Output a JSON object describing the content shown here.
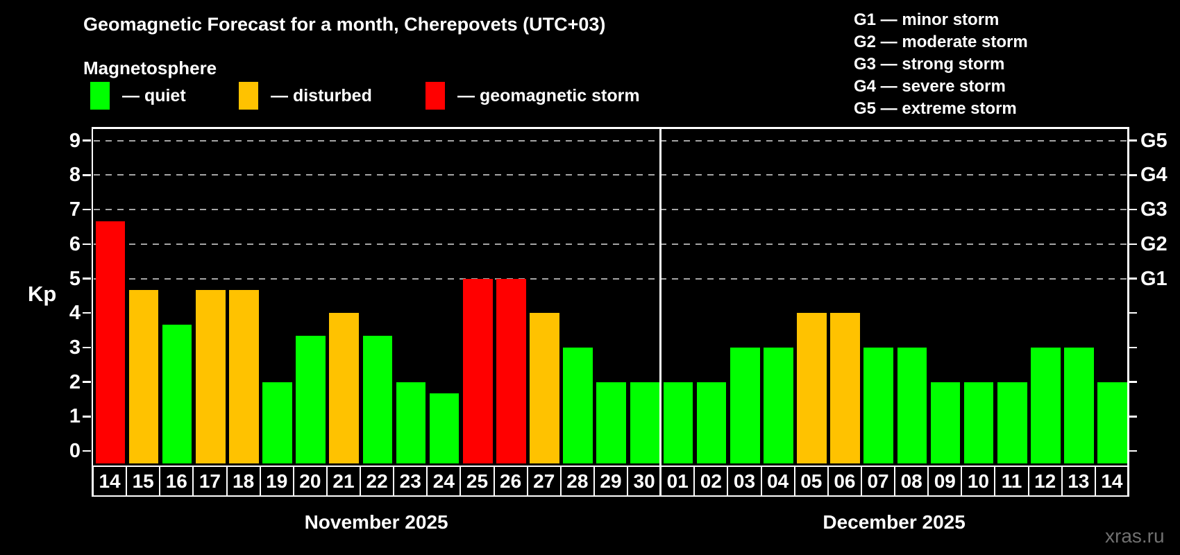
{
  "colors": {
    "quiet": "#00ff00",
    "disturbed": "#ffc200",
    "storm": "#ff0000",
    "grid": "#a6a6a6",
    "axis": "#ffffff",
    "watermark": "#707070"
  },
  "header": {
    "title": "Geomagnetic Forecast for a month, Cherepovets (UTC+03)",
    "subtitle": "Magnetosphere"
  },
  "legend": {
    "items": [
      {
        "key": "quiet",
        "label": "— quiet"
      },
      {
        "key": "disturbed",
        "label": "— disturbed"
      },
      {
        "key": "storm",
        "label": "— geomagnetic storm"
      }
    ]
  },
  "g_legend": {
    "lines": [
      "G1 — minor storm",
      "G2 — moderate storm",
      "G3 — strong storm",
      "G4 — severe storm",
      "G5 — extreme storm"
    ]
  },
  "watermark": "xras.ru",
  "chart_data": {
    "type": "bar",
    "title": "Geomagnetic Forecast for a month, Cherepovets (UTC+03)",
    "subtitle": "Magnetosphere",
    "ylabel": "Kp",
    "xlabel": "",
    "ylim": [
      0,
      9.4
    ],
    "yticks": [
      0,
      1,
      2,
      3,
      4,
      5,
      6,
      7,
      8,
      9
    ],
    "grid_levels": [
      5,
      6,
      7,
      8,
      9
    ],
    "grid": "dashed horizontal at storm levels only",
    "legend_position": "top-left",
    "right_axis": [
      {
        "kp": 5,
        "label": "G1"
      },
      {
        "kp": 6,
        "label": "G2"
      },
      {
        "kp": 7,
        "label": "G3"
      },
      {
        "kp": 8,
        "label": "G4"
      },
      {
        "kp": 9,
        "label": "G5"
      }
    ],
    "months": [
      {
        "label": "November 2025",
        "start_index": 0,
        "count": 17
      },
      {
        "label": "December 2025",
        "start_index": 17,
        "count": 14
      }
    ],
    "bars": [
      {
        "date": "14",
        "kp": 6.67,
        "status": "storm"
      },
      {
        "date": "15",
        "kp": 4.67,
        "status": "disturbed"
      },
      {
        "date": "16",
        "kp": 3.67,
        "status": "quiet"
      },
      {
        "date": "17",
        "kp": 4.67,
        "status": "disturbed"
      },
      {
        "date": "18",
        "kp": 4.67,
        "status": "disturbed"
      },
      {
        "date": "19",
        "kp": 2,
        "status": "quiet"
      },
      {
        "date": "20",
        "kp": 3.33,
        "status": "quiet"
      },
      {
        "date": "21",
        "kp": 4,
        "status": "disturbed"
      },
      {
        "date": "22",
        "kp": 3.33,
        "status": "quiet"
      },
      {
        "date": "23",
        "kp": 2,
        "status": "quiet"
      },
      {
        "date": "24",
        "kp": 1.67,
        "status": "quiet"
      },
      {
        "date": "25",
        "kp": 5,
        "status": "storm"
      },
      {
        "date": "26",
        "kp": 5,
        "status": "storm"
      },
      {
        "date": "27",
        "kp": 4,
        "status": "disturbed"
      },
      {
        "date": "28",
        "kp": 3,
        "status": "quiet"
      },
      {
        "date": "29",
        "kp": 2,
        "status": "quiet"
      },
      {
        "date": "30",
        "kp": 2,
        "status": "quiet"
      },
      {
        "date": "01",
        "kp": 2,
        "status": "quiet"
      },
      {
        "date": "02",
        "kp": 2,
        "status": "quiet"
      },
      {
        "date": "03",
        "kp": 3,
        "status": "quiet"
      },
      {
        "date": "04",
        "kp": 3,
        "status": "quiet"
      },
      {
        "date": "05",
        "kp": 4,
        "status": "disturbed"
      },
      {
        "date": "06",
        "kp": 4,
        "status": "disturbed"
      },
      {
        "date": "07",
        "kp": 3,
        "status": "quiet"
      },
      {
        "date": "08",
        "kp": 3,
        "status": "quiet"
      },
      {
        "date": "09",
        "kp": 2,
        "status": "quiet"
      },
      {
        "date": "10",
        "kp": 2,
        "status": "quiet"
      },
      {
        "date": "11",
        "kp": 2,
        "status": "quiet"
      },
      {
        "date": "12",
        "kp": 3,
        "status": "quiet"
      },
      {
        "date": "13",
        "kp": 3,
        "status": "quiet"
      },
      {
        "date": "14",
        "kp": 2,
        "status": "quiet"
      }
    ]
  }
}
